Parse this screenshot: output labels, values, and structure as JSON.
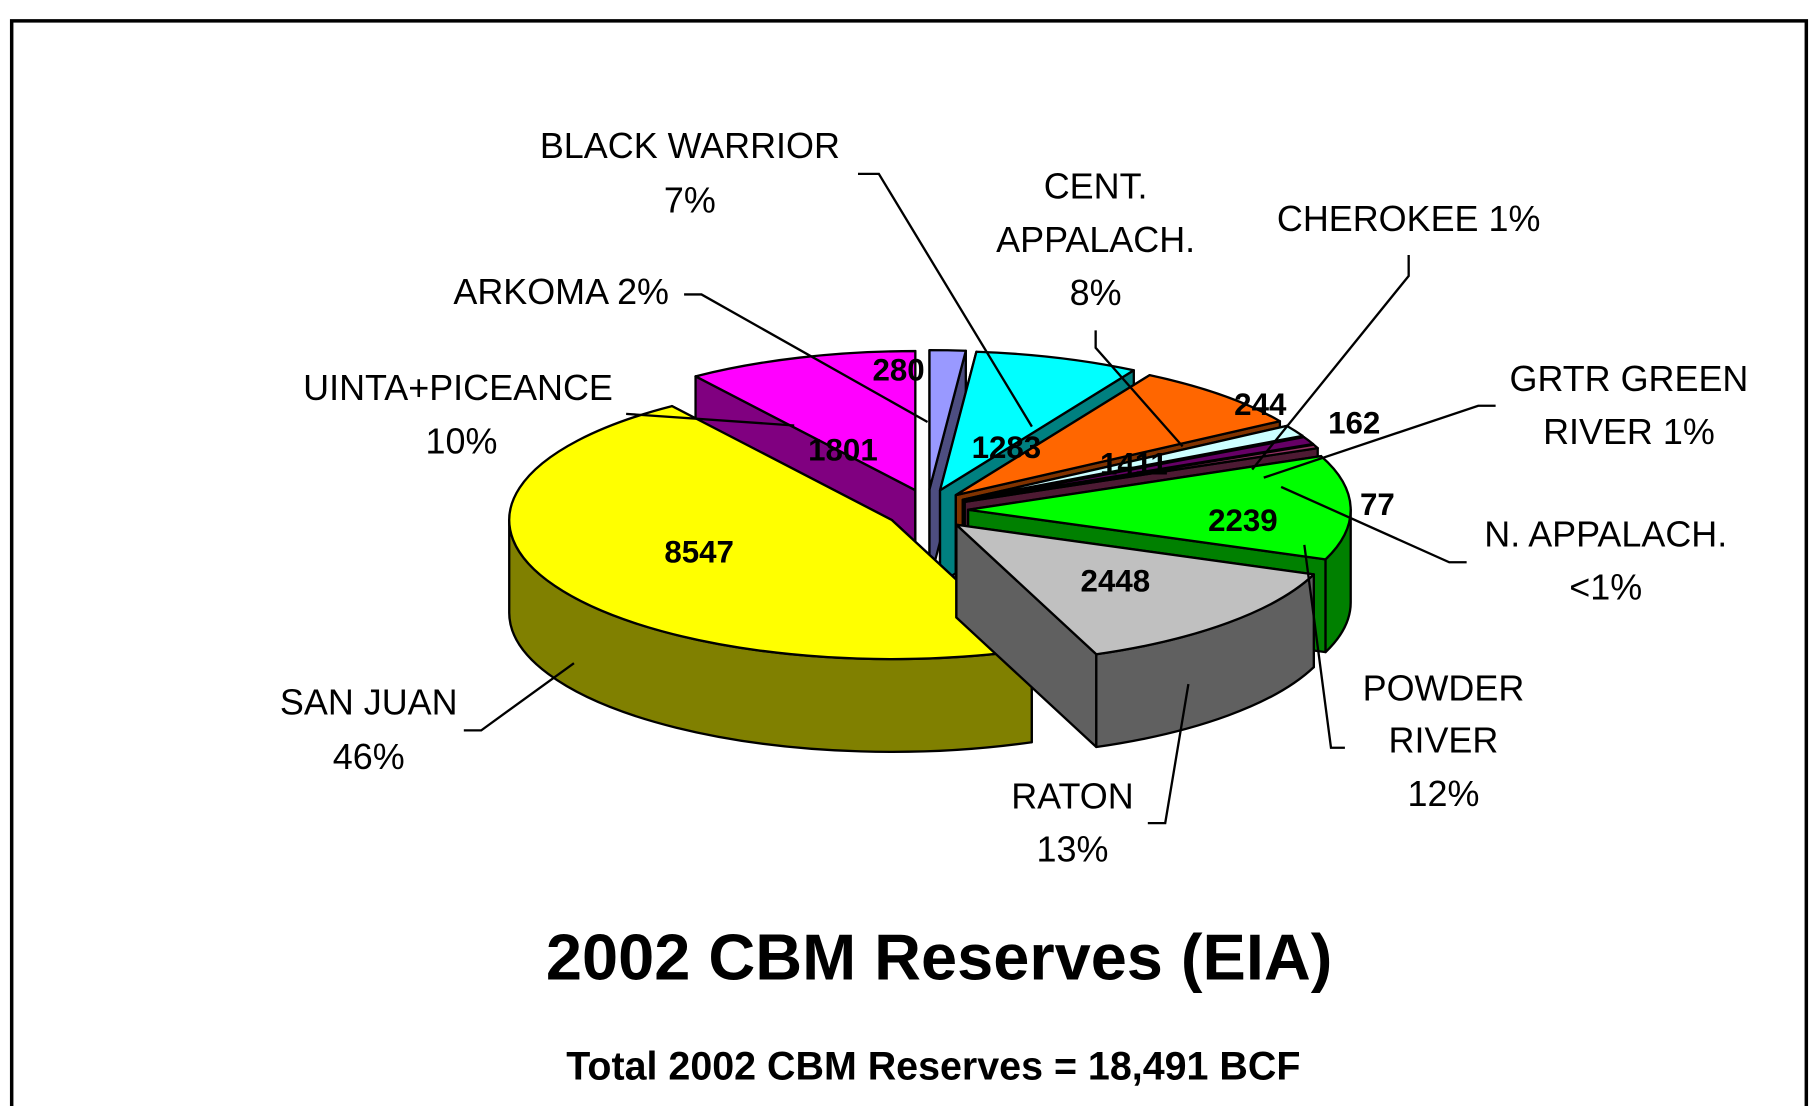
{
  "chart_data": {
    "type": "pie3d",
    "title": "2002 CBM Reserves (EIA)",
    "subtitle": "Total 2002 CBM Reserves = 18,491 BCF",
    "labels": [
      [
        "ARKOMA 2%"
      ],
      [
        "BLACK  WARRIOR",
        "7%"
      ],
      [
        "CENT.",
        "APPALACH.",
        "8%"
      ],
      [
        "CHEROKEE 1%"
      ],
      [
        "GRTR GREEN",
        "RIVER 1%"
      ],
      [
        "N. APPALACH.",
        "<1%"
      ],
      [
        "POWDER",
        "RIVER",
        "12%"
      ],
      [
        "RATON",
        "13%"
      ],
      [
        "SAN JUAN",
        "46%"
      ],
      [
        "UINTA+PICEANCE",
        "10%"
      ]
    ],
    "values": [
      280,
      1283,
      1411,
      244,
      162,
      77,
      2239,
      2448,
      8547,
      1801
    ],
    "colors": [
      "#9999ff",
      "#00ffff",
      "#ff6600",
      "#ccffff",
      "#660066",
      "#993366",
      "#00ff00",
      "#c0c0c0",
      "#ffff00",
      "#ff00ff"
    ]
  }
}
